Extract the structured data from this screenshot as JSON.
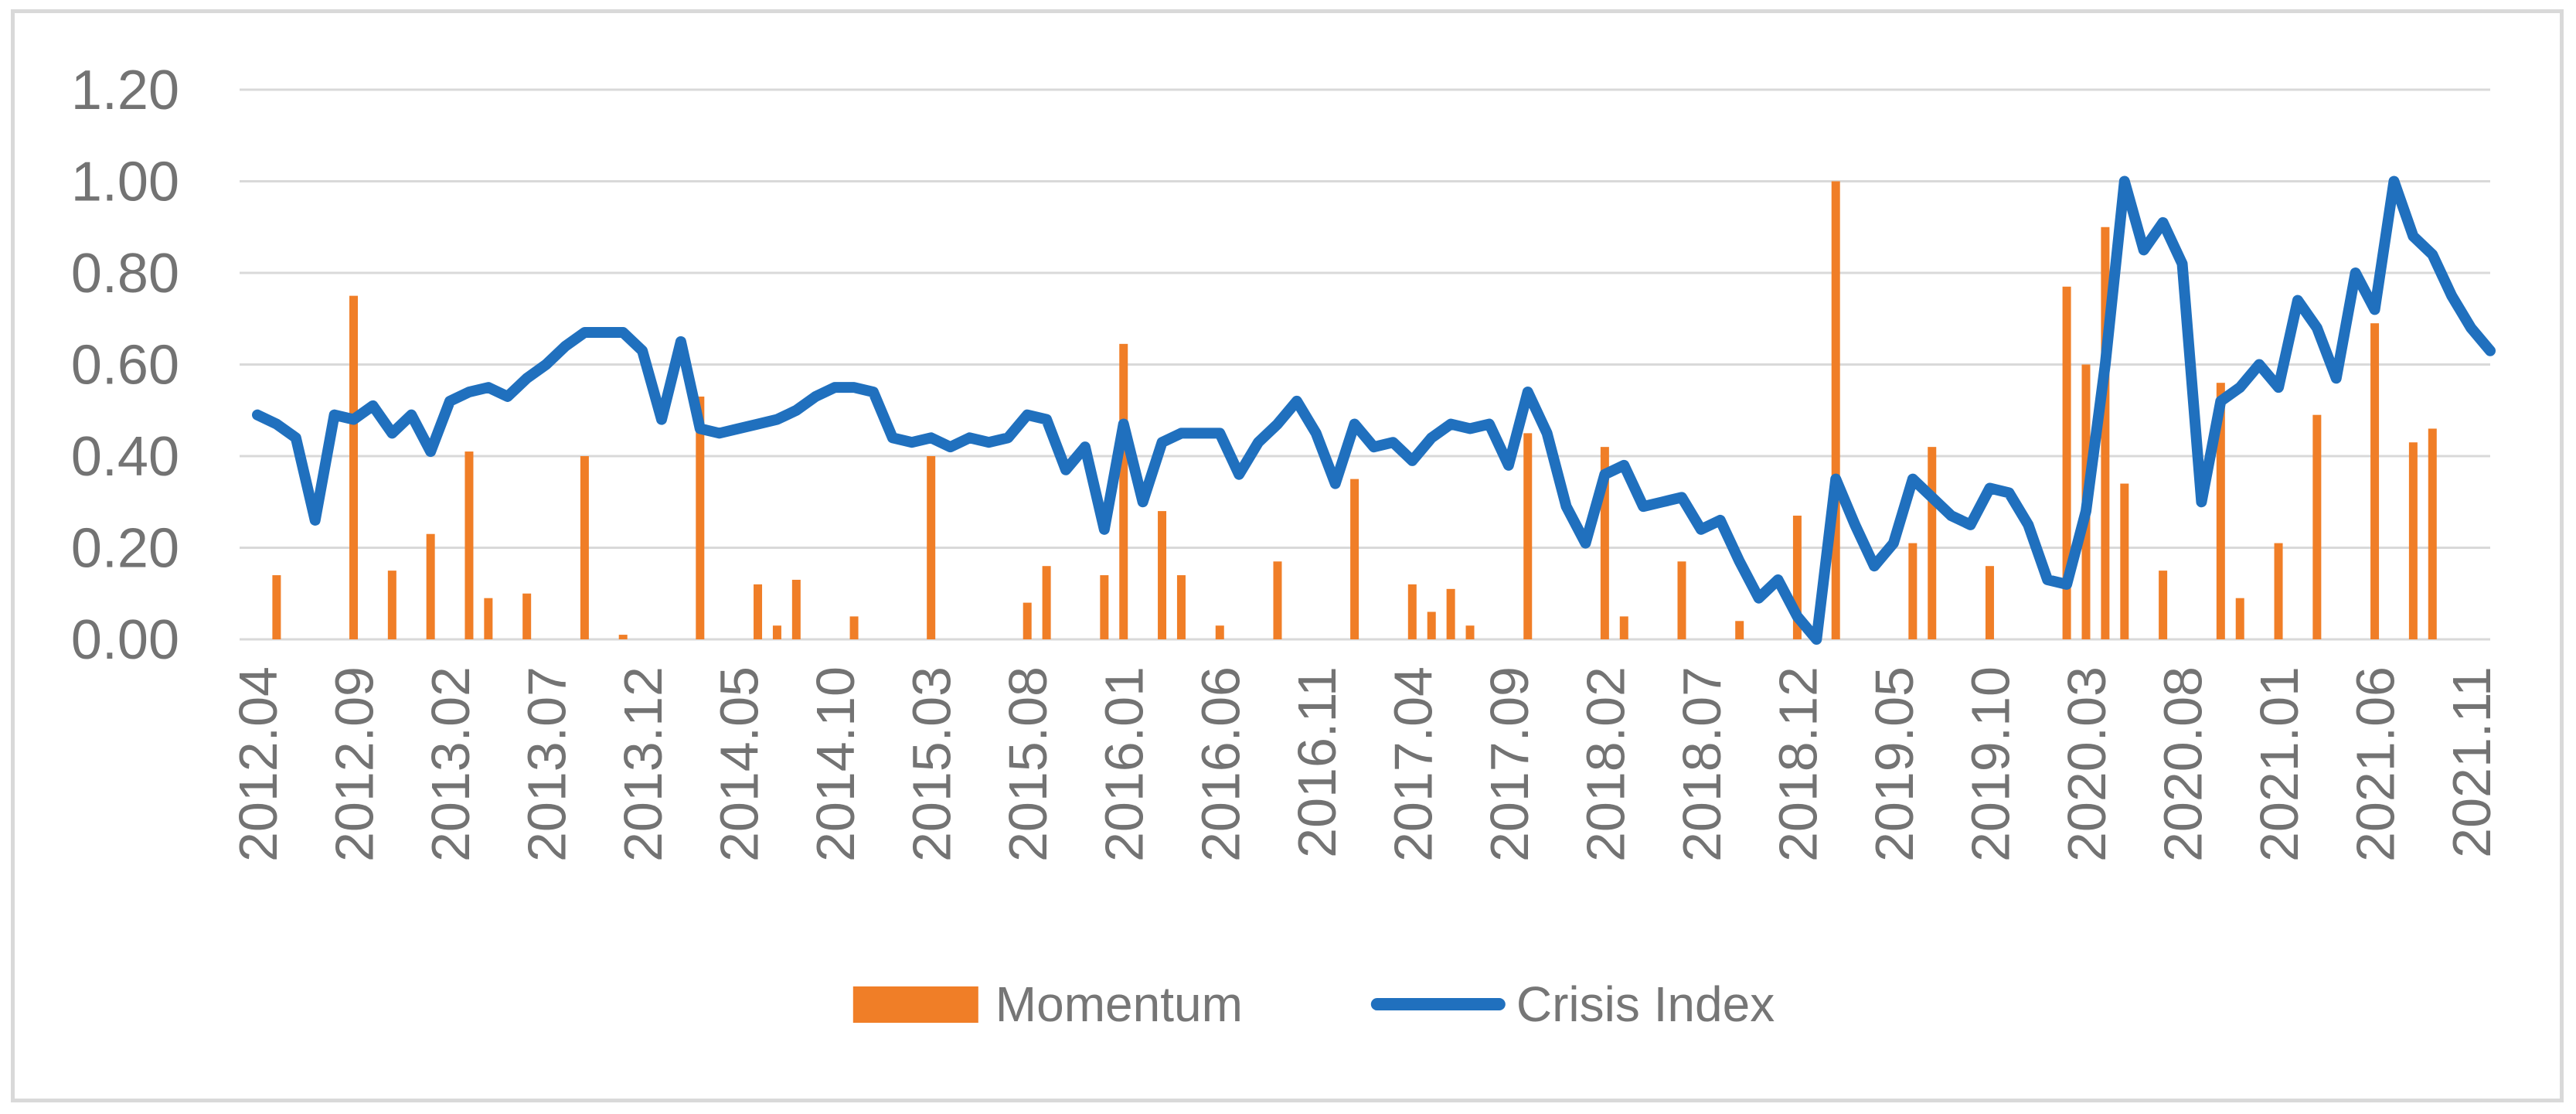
{
  "figure": {
    "background": "#FFFFFF",
    "border_color": "#D9D9D9",
    "axis_text_color": "#737373",
    "gridline_color": "#D9D9D9"
  },
  "legend": {
    "items": [
      {
        "label": "Momentum",
        "color": "#F07E27",
        "marker": "rect"
      },
      {
        "label": "Crisis Index",
        "color": "#2070BE",
        "marker": "line"
      }
    ]
  },
  "chart_data": {
    "type": "combo-bar-line",
    "title": "",
    "xlabel": "",
    "ylabel": "",
    "ylim": [
      0,
      1.2
    ],
    "grid": "horizontal",
    "legend_position": "bottom",
    "y_tick_labels": [
      "0.00",
      "0.20",
      "0.40",
      "0.60",
      "0.80",
      "1.00",
      "1.20"
    ],
    "x_tick_every": 5,
    "x_tick_labels": [
      "2012.04",
      "2012.09",
      "2013.02",
      "2013.07",
      "2013.12",
      "2014.05",
      "2014.10",
      "2015.03",
      "2015.08",
      "2016.01",
      "2016.06",
      "2016.11",
      "2017.04",
      "2017.09",
      "2018.02",
      "2018.07",
      "2018.12",
      "2019.05",
      "2019.10",
      "2020.03",
      "2020.08",
      "2021.01",
      "2021.06",
      "2021.11"
    ],
    "categories": [
      "2012.04",
      "2012.05",
      "2012.06",
      "2012.07",
      "2012.08",
      "2012.09",
      "2012.10",
      "2012.11",
      "2012.12",
      "2013.01",
      "2013.02",
      "2013.03",
      "2013.04",
      "2013.05",
      "2013.06",
      "2013.07",
      "2013.08",
      "2013.09",
      "2013.10",
      "2013.11",
      "2013.12",
      "2014.01",
      "2014.02",
      "2014.03",
      "2014.04",
      "2014.05",
      "2014.06",
      "2014.07",
      "2014.08",
      "2014.09",
      "2014.10",
      "2014.11",
      "2014.12",
      "2015.01",
      "2015.02",
      "2015.03",
      "2015.04",
      "2015.05",
      "2015.06",
      "2015.07",
      "2015.08",
      "2015.09",
      "2015.10",
      "2015.11",
      "2015.12",
      "2016.01",
      "2016.02",
      "2016.03",
      "2016.04",
      "2016.05",
      "2016.06",
      "2016.07",
      "2016.08",
      "2016.09",
      "2016.10",
      "2016.11",
      "2016.12",
      "2017.01",
      "2017.02",
      "2017.03",
      "2017.04",
      "2017.05",
      "2017.06",
      "2017.07",
      "2017.08",
      "2017.09",
      "2017.10",
      "2017.11",
      "2017.12",
      "2018.01",
      "2018.02",
      "2018.03",
      "2018.04",
      "2018.05",
      "2018.06",
      "2018.07",
      "2018.08",
      "2018.09",
      "2018.10",
      "2018.11",
      "2018.12",
      "2019.01",
      "2019.02",
      "2019.03",
      "2019.04",
      "2019.05",
      "2019.06",
      "2019.07",
      "2019.08",
      "2019.09",
      "2019.10",
      "2019.11",
      "2019.12",
      "2020.01",
      "2020.02",
      "2020.03",
      "2020.04",
      "2020.05",
      "2020.06",
      "2020.07",
      "2020.08",
      "2020.09",
      "2020.10",
      "2020.11",
      "2020.12",
      "2021.01",
      "2021.02",
      "2021.03",
      "2021.04",
      "2021.05",
      "2021.06",
      "2021.07",
      "2021.08",
      "2021.09",
      "2021.10",
      "2021.11",
      "2021.12"
    ],
    "series": [
      {
        "name": "Momentum",
        "type": "bar",
        "color": "#F07E27",
        "values": [
          null,
          0.14,
          null,
          null,
          null,
          0.75,
          null,
          0.15,
          null,
          0.23,
          null,
          0.41,
          0.09,
          null,
          0.1,
          null,
          null,
          0.4,
          null,
          0.01,
          null,
          null,
          null,
          0.53,
          null,
          null,
          0.12,
          0.03,
          0.13,
          null,
          null,
          0.05,
          null,
          null,
          null,
          0.4,
          null,
          null,
          null,
          null,
          0.08,
          0.16,
          null,
          null,
          0.14,
          0.645,
          null,
          0.28,
          0.14,
          null,
          0.03,
          null,
          null,
          0.17,
          null,
          null,
          null,
          0.35,
          null,
          null,
          0.12,
          0.06,
          0.11,
          0.03,
          null,
          null,
          0.45,
          null,
          null,
          null,
          0.42,
          0.05,
          null,
          null,
          0.17,
          null,
          null,
          0.04,
          null,
          null,
          0.27,
          null,
          1.0,
          null,
          null,
          null,
          0.21,
          0.42,
          null,
          null,
          0.16,
          null,
          null,
          null,
          0.77,
          0.6,
          0.9,
          0.34,
          null,
          0.15,
          null,
          null,
          0.56,
          0.09,
          null,
          0.21,
          null,
          0.49,
          null,
          null,
          0.69,
          null,
          0.43,
          0.46,
          null,
          null,
          null
        ]
      },
      {
        "name": "Crisis Index",
        "type": "line",
        "color": "#2070BE",
        "values": [
          0.49,
          0.47,
          0.44,
          0.26,
          0.49,
          0.48,
          0.51,
          0.45,
          0.49,
          0.41,
          0.52,
          0.54,
          0.55,
          0.53,
          0.57,
          0.6,
          0.64,
          0.67,
          0.67,
          0.67,
          0.63,
          0.48,
          0.65,
          0.46,
          0.45,
          0.46,
          0.47,
          0.48,
          0.5,
          0.53,
          0.55,
          0.55,
          0.54,
          0.44,
          0.43,
          0.44,
          0.42,
          0.44,
          0.43,
          0.44,
          0.49,
          0.48,
          0.37,
          0.42,
          0.24,
          0.47,
          0.3,
          0.43,
          0.45,
          0.45,
          0.45,
          0.36,
          0.43,
          0.47,
          0.52,
          0.45,
          0.34,
          0.47,
          0.42,
          0.43,
          0.39,
          0.44,
          0.47,
          0.46,
          0.47,
          0.38,
          0.54,
          0.45,
          0.29,
          0.21,
          0.36,
          0.38,
          0.29,
          0.3,
          0.31,
          0.24,
          0.26,
          0.17,
          0.09,
          0.13,
          0.05,
          0.0,
          0.35,
          0.25,
          0.16,
          0.21,
          0.35,
          0.31,
          0.27,
          0.25,
          0.33,
          0.32,
          0.25,
          0.13,
          0.12,
          0.28,
          0.6,
          1.0,
          0.85,
          0.91,
          0.82,
          0.3,
          0.52,
          0.55,
          0.6,
          0.55,
          0.74,
          0.68,
          0.57,
          0.8,
          0.72,
          1.0,
          0.88,
          0.84,
          0.75,
          0.68,
          0.63
        ]
      }
    ]
  }
}
